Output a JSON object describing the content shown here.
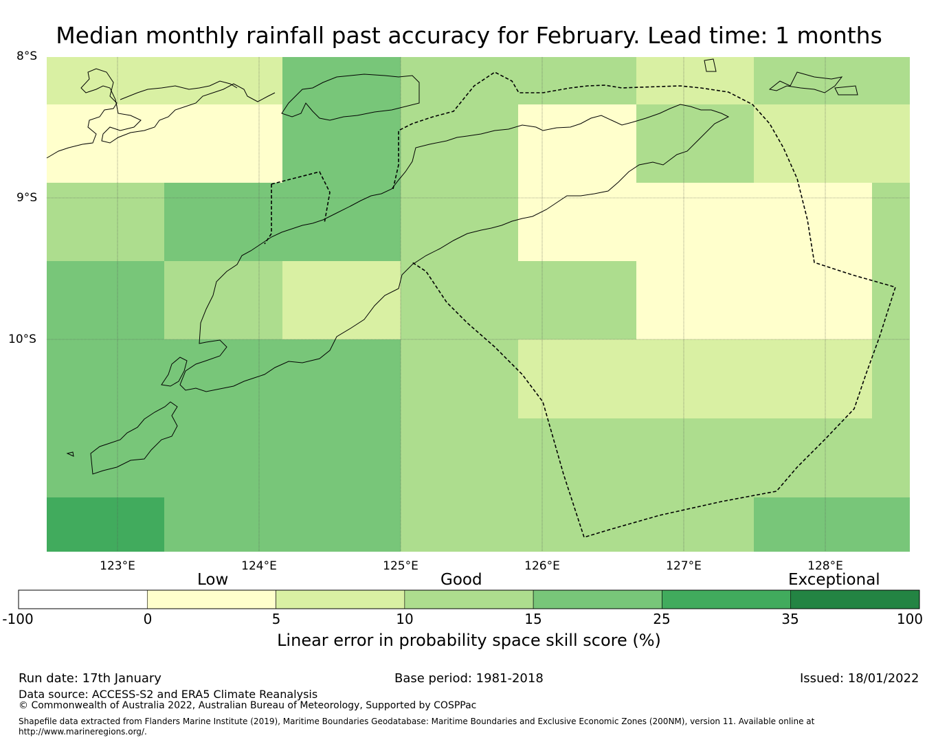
{
  "title": "Median monthly rainfall past accuracy for February. Lead time: 1 months",
  "map": {
    "lat_labels": [
      "8°S",
      "9°S",
      "10°S"
    ],
    "lon_labels": [
      "123°E",
      "124°E",
      "125°E",
      "126°E",
      "127°E",
      "128°E"
    ],
    "extent": {
      "lon_min": 122.5,
      "lon_max": 128.6,
      "lat_max": -8.0,
      "lat_min": -11.5
    },
    "grid_skill": [
      [
        "5-10",
        "5-10",
        "5-10",
        "5-10",
        "15-25",
        "15-25",
        "10-15",
        "10-15",
        "10-15",
        "10-15",
        "5-10",
        "5-10",
        "10-15",
        "10-15"
      ],
      [
        "0-5",
        "0-5",
        "0-5",
        "0-5",
        "15-25",
        "15-25",
        "10-15",
        "10-15",
        "0-5",
        "0-5",
        "10-15",
        "10-15",
        "5-10",
        "5-10"
      ],
      [
        "10-15",
        "10-15",
        "15-25",
        "15-25",
        "15-25",
        "15-25",
        "10-15",
        "10-15",
        "0-5",
        "0-5",
        "0-5",
        "0-5",
        "0-5",
        "10-15"
      ],
      [
        "15-25",
        "15-25",
        "10-15",
        "10-15",
        "5-10",
        "5-10",
        "10-15",
        "10-15",
        "10-15",
        "10-15",
        "0-5",
        "0-5",
        "0-5",
        "10-15"
      ],
      [
        "15-25",
        "15-25",
        "15-25",
        "15-25",
        "15-25",
        "15-25",
        "10-15",
        "10-15",
        "5-10",
        "5-10",
        "5-10",
        "5-10",
        "5-10",
        "10-15"
      ],
      [
        "15-25",
        "15-25",
        "15-25",
        "15-25",
        "15-25",
        "15-25",
        "10-15",
        "10-15",
        "10-15",
        "10-15",
        "10-15",
        "10-15",
        "10-15",
        "10-15"
      ],
      [
        "25-35",
        "25-35",
        "15-25",
        "15-25",
        "15-25",
        "15-25",
        "10-15",
        "10-15",
        "10-15",
        "10-15",
        "10-15",
        "10-15",
        "15-25",
        "15-25"
      ]
    ]
  },
  "colorbar": {
    "category_labels": [
      "Low",
      "Good",
      "Exceptional"
    ],
    "tick_labels": [
      "-100",
      "0",
      "5",
      "10",
      "15",
      "25",
      "35",
      "100"
    ],
    "bins": [
      {
        "range": "-100-0",
        "color": "#ffffff"
      },
      {
        "range": "0-5",
        "color": "#ffffcc"
      },
      {
        "range": "5-10",
        "color": "#d9f0a3"
      },
      {
        "range": "10-15",
        "color": "#addd8e"
      },
      {
        "range": "15-25",
        "color": "#78c679"
      },
      {
        "range": "25-35",
        "color": "#41ab5d"
      },
      {
        "range": "35-100",
        "color": "#238443"
      }
    ],
    "xlabel": "Linear error in probability space skill score (%)"
  },
  "footer": {
    "run_date": "Run date: 17th January",
    "base_period": "Base period: 1981-2018",
    "issued": "Issued: 18/01/2022",
    "data_source": "Data source: ACCESS-S2 and ERA5 Climate Reanalysis",
    "copyright": "© Commonwealth of Australia 2022, Australian Bureau of Meteorology, Supported by COSPPac",
    "shapefile": "Shapefile data extracted from Flanders Marine Institute (2019), Maritime Boundaries Geodatabase: Maritime Boundaries and Exclusive Economic Zones (200NM), version 11. Available online at http://www.marineregions.org/."
  }
}
